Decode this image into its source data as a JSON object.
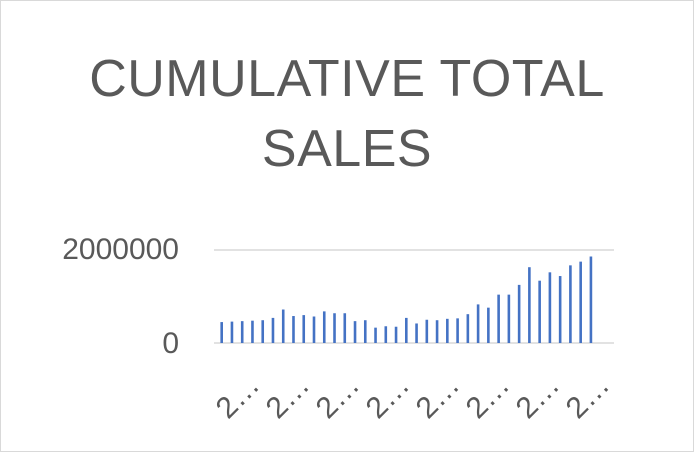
{
  "chart_data": {
    "type": "bar",
    "title": "CUMULATIVE TOTAL SALES",
    "xlabel": "",
    "ylabel": "",
    "ylim": [
      0,
      2000000
    ],
    "yticks": [
      "0",
      "2000000"
    ],
    "grid": true,
    "legend": "none",
    "bar_color": "#4472c4",
    "categories": [
      "2…",
      "2…",
      "2…",
      "2…",
      "2…",
      "2…",
      "2…",
      "2…",
      "2…",
      "2…",
      "2…",
      "2…",
      "2…",
      "2…",
      "2…",
      "2…",
      "2…",
      "2…",
      "2…",
      "2…",
      "2…",
      "2…",
      "2…",
      "2…",
      "2…",
      "2…",
      "2…",
      "2…",
      "2…",
      "2…",
      "2…",
      "2…",
      "2…",
      "2…",
      "2…",
      "2…",
      "2…",
      "2…",
      "2…",
      "2…",
      "2…",
      "2…",
      "2…",
      "2…",
      "2…",
      "2…",
      "2…",
      "2…",
      "2…",
      "2…",
      "2…",
      "2…",
      "2…",
      "2…",
      "2…",
      "2…",
      "2…",
      "2…",
      "2…",
      "2…",
      "2…",
      "2…",
      "2…",
      "2…",
      "2…",
      "2…",
      "2…",
      "2…",
      "2…",
      "2…",
      "2…",
      "2…",
      "2…",
      "2…",
      "2…",
      "2…",
      "2…",
      "2…"
    ],
    "visible_tick_labels": [
      "2…",
      "2…",
      "2…",
      "2…",
      "2…",
      "2…",
      "2…",
      "2…"
    ],
    "values": [
      0,
      450000,
      0,
      460000,
      0,
      470000,
      0,
      480000,
      0,
      490000,
      0,
      540000,
      0,
      720000,
      0,
      580000,
      0,
      600000,
      0,
      570000,
      0,
      680000,
      0,
      640000,
      0,
      640000,
      0,
      470000,
      0,
      490000,
      0,
      330000,
      0,
      360000,
      0,
      350000,
      0,
      540000,
      0,
      420000,
      0,
      500000,
      0,
      490000,
      0,
      520000,
      0,
      530000,
      0,
      620000,
      0,
      830000,
      0,
      760000,
      0,
      1040000,
      0,
      1040000,
      0,
      1250000,
      0,
      1630000,
      0,
      1340000,
      0,
      1520000,
      0,
      1440000,
      0,
      1670000,
      0,
      1750000,
      0,
      1860000,
      0,
      0,
      0,
      0
    ]
  }
}
